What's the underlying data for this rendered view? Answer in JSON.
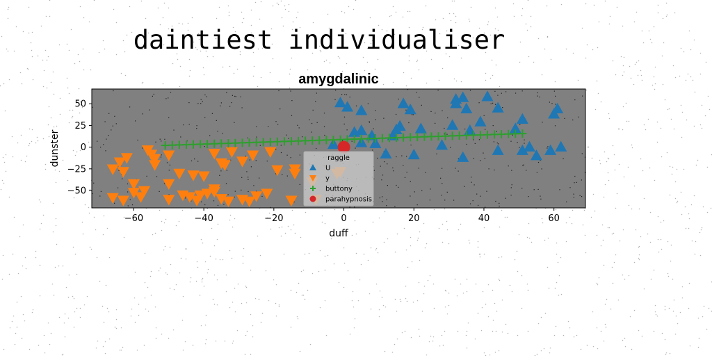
{
  "figure_title": "daintiest individualiser",
  "colors": {
    "background": "#ffffff",
    "axes_face": "#808080",
    "U": "#1f77b4",
    "y": "#ff7f0e",
    "buttony": "#2ca02c",
    "parahypnosis": "#d62728"
  },
  "chart_data": {
    "type": "scatter",
    "title": "amygdalinic",
    "xlabel": "duff",
    "ylabel": "dunster",
    "xlim": [
      -72,
      69
    ],
    "ylim": [
      -70,
      67
    ],
    "xticks": [
      -60,
      -40,
      -20,
      0,
      20,
      40,
      60
    ],
    "yticks": [
      -50,
      -25,
      0,
      25,
      50
    ],
    "grid": false,
    "legend": {
      "title": "raggle",
      "placement": "lower-center",
      "entries": [
        "U",
        "y",
        "buttony",
        "parahypnosis"
      ]
    },
    "series": [
      {
        "name": "U",
        "marker": "triangle-up",
        "points": [
          [
            -1,
            51
          ],
          [
            1,
            46
          ],
          [
            5,
            42
          ],
          [
            17,
            50
          ],
          [
            19,
            43
          ],
          [
            32,
            55
          ],
          [
            34,
            57
          ],
          [
            32,
            50
          ],
          [
            35,
            44
          ],
          [
            41,
            58
          ],
          [
            44,
            45
          ],
          [
            61,
            44
          ],
          [
            60,
            38
          ],
          [
            51,
            32
          ],
          [
            31,
            25
          ],
          [
            39,
            29
          ],
          [
            49,
            21
          ],
          [
            36,
            19
          ],
          [
            22,
            21
          ],
          [
            15,
            20
          ],
          [
            16,
            24
          ],
          [
            3,
            17
          ],
          [
            5,
            19
          ],
          [
            8,
            13
          ],
          [
            14,
            13
          ],
          [
            5,
            5
          ],
          [
            9,
            4
          ],
          [
            -3,
            3
          ],
          [
            28,
            2
          ],
          [
            12,
            -8
          ],
          [
            20,
            -9
          ],
          [
            34,
            -12
          ],
          [
            44,
            -4
          ],
          [
            51,
            -4
          ],
          [
            53,
            0
          ],
          [
            55,
            -10
          ],
          [
            59,
            -4
          ],
          [
            62,
            0
          ]
        ]
      },
      {
        "name": "y",
        "marker": "triangle-down",
        "points": [
          [
            -56,
            -3
          ],
          [
            -55,
            -8
          ],
          [
            -54,
            -13
          ],
          [
            -62,
            -12
          ],
          [
            -64,
            -17
          ],
          [
            -66,
            -25
          ],
          [
            -63,
            -28
          ],
          [
            -54,
            -20
          ],
          [
            -50,
            -9
          ],
          [
            -47,
            -30
          ],
          [
            -43,
            -32
          ],
          [
            -40,
            -33
          ],
          [
            -37,
            -7
          ],
          [
            -35,
            -18
          ],
          [
            -34,
            -20
          ],
          [
            -32,
            -5
          ],
          [
            -29,
            -16
          ],
          [
            -26,
            -9
          ],
          [
            -21,
            -5
          ],
          [
            -19,
            -26
          ],
          [
            -14,
            -25
          ],
          [
            -14,
            -30
          ],
          [
            -9,
            -40
          ],
          [
            -2,
            -30
          ],
          [
            -1,
            -28
          ],
          [
            -60,
            -42
          ],
          [
            -57,
            -50
          ],
          [
            -60,
            -52
          ],
          [
            -58,
            -57
          ],
          [
            -66,
            -58
          ],
          [
            -63,
            -61
          ],
          [
            -50,
            -42
          ],
          [
            -46,
            -55
          ],
          [
            -44,
            -57
          ],
          [
            -42,
            -61
          ],
          [
            -41,
            -55
          ],
          [
            -39,
            -53
          ],
          [
            -37,
            -48
          ],
          [
            -37,
            -51
          ],
          [
            -35,
            -59
          ],
          [
            -33,
            -62
          ],
          [
            -29,
            -60
          ],
          [
            -27,
            -62
          ],
          [
            -25,
            -56
          ],
          [
            -22,
            -53
          ],
          [
            -15,
            -61
          ],
          [
            -8,
            -60
          ],
          [
            -50,
            -60
          ]
        ]
      },
      {
        "name": "buttony",
        "marker": "plus",
        "points": [
          [
            -51,
            2
          ],
          [
            -49,
            2.3
          ],
          [
            -47,
            2.6
          ],
          [
            -45,
            2.8
          ],
          [
            -43,
            3.1
          ],
          [
            -41,
            3.4
          ],
          [
            -39,
            3.6
          ],
          [
            -37,
            3.9
          ],
          [
            -35,
            4.2
          ],
          [
            -33,
            4.4
          ],
          [
            -31,
            4.7
          ],
          [
            -29,
            5
          ],
          [
            -27,
            5.2
          ],
          [
            -25,
            5.5
          ],
          [
            -23,
            5.8
          ],
          [
            -21,
            6
          ],
          [
            -19,
            6.3
          ],
          [
            -17,
            6.6
          ],
          [
            -15,
            6.8
          ],
          [
            -13,
            7.1
          ],
          [
            -11,
            7.4
          ],
          [
            -9,
            7.6
          ],
          [
            -7,
            7.9
          ],
          [
            -5,
            8.2
          ],
          [
            -3,
            8.4
          ],
          [
            -1,
            8.7
          ],
          [
            1,
            9
          ],
          [
            3,
            9.2
          ],
          [
            5,
            9.5
          ],
          [
            7,
            9.8
          ],
          [
            9,
            10
          ],
          [
            11,
            10.3
          ],
          [
            13,
            10.6
          ],
          [
            15,
            10.8
          ],
          [
            17,
            11.1
          ],
          [
            19,
            11.4
          ],
          [
            21,
            11.6
          ],
          [
            23,
            11.9
          ],
          [
            25,
            12.2
          ],
          [
            27,
            12.4
          ],
          [
            29,
            12.7
          ],
          [
            31,
            13
          ],
          [
            33,
            13.2
          ],
          [
            35,
            13.5
          ],
          [
            37,
            13.8
          ],
          [
            39,
            14
          ],
          [
            41,
            14.3
          ],
          [
            43,
            14.6
          ],
          [
            45,
            14.8
          ],
          [
            47,
            15.1
          ],
          [
            49,
            15.4
          ],
          [
            51,
            15.6
          ]
        ]
      },
      {
        "name": "parahypnosis",
        "marker": "circle",
        "points": [
          [
            0,
            0
          ]
        ]
      }
    ]
  }
}
